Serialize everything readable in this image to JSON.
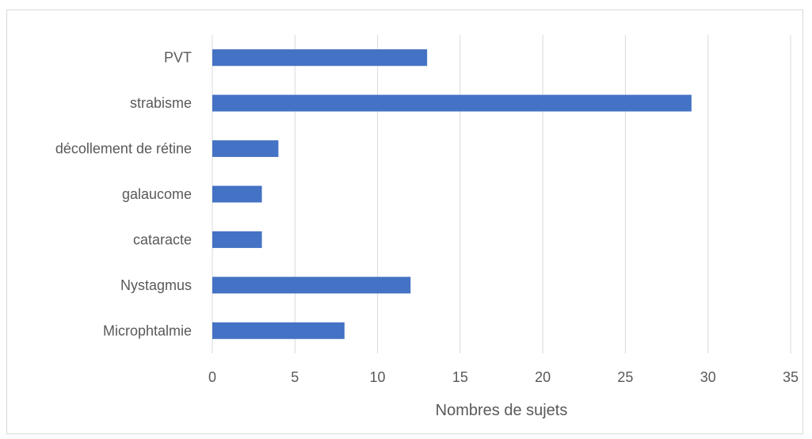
{
  "chart_data": {
    "type": "bar",
    "orientation": "horizontal",
    "title": "",
    "xlabel": "Nombres de sujets",
    "ylabel": "",
    "categories": [
      "Microphtalmie",
      "Nystagmus",
      "cataracte",
      "galaucome",
      "décollement de rétine",
      "strabisme",
      "PVT"
    ],
    "values": [
      8,
      12,
      3,
      3,
      4,
      29,
      13
    ],
    "xlim": [
      0,
      35
    ],
    "xticks": [
      0,
      5,
      10,
      15,
      20,
      25,
      30,
      35
    ],
    "grid": "vertical",
    "legend": "none",
    "bar_color": "#4472C4",
    "grid_color": "#d9d9d9"
  }
}
